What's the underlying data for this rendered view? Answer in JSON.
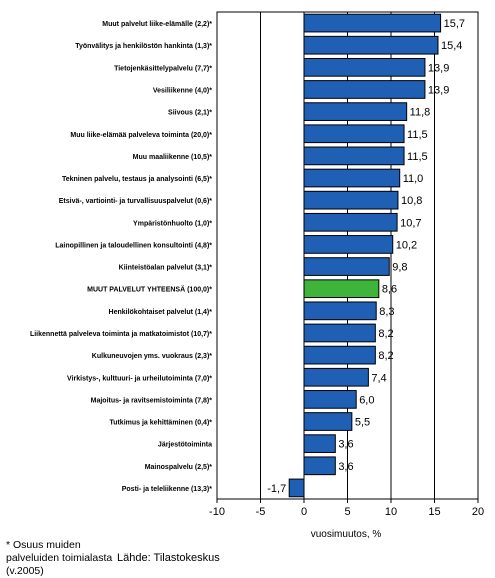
{
  "chart_data": {
    "type": "bar",
    "orientation": "horizontal",
    "categories": [
      "Muut palvelut liike-elämälle (2,2)*",
      "Työnvälitys ja henkilöstön hankinta (1,3)*",
      "Tietojenkäsittelypalvelu (7,7)*",
      "Vesiliikenne (4,0)*",
      "Siivous (2,1)*",
      "Muu liike-elämää palveleva toiminta (20,0)*",
      "Muu maaliikenne (10,5)*",
      "Tekninen palvelu, testaus ja analysointi (6,5)*",
      "Etsivä-, vartiointi- ja turvallisuuspalvelut (0,6)*",
      "Ympäristönhuolto (1,0)*",
      "Lainopillinen ja taloudellinen konsultointi (4,8)*",
      "Kiinteistöalan palvelut (3,1)*",
      "MUUT PALVELUT YHTEENSÄ (100,0)*",
      "Henkilökohtaiset palvelut (1,4)*",
      "Liikennettä palveleva toiminta ja matkatoimistot (10,7)*",
      "Kulkuneuvojen yms. vuokraus (2,3)*",
      "Virkistys-, kulttuuri- ja urheilutoiminta (7,0)*",
      "Majoitus- ja ravitsemistoiminta (7,8)*",
      "Tutkimus ja kehittäminen (0,4)*",
      "Järjestötoiminta",
      "Mainospalvelu (2,5)*",
      "Posti- ja teleliikenne (13,3)*"
    ],
    "values": [
      15.7,
      15.4,
      13.9,
      13.9,
      11.8,
      11.5,
      11.5,
      11.0,
      10.8,
      10.7,
      10.2,
      9.8,
      8.6,
      8.3,
      8.2,
      8.2,
      7.4,
      6.0,
      5.5,
      3.6,
      3.6,
      -1.7
    ],
    "value_labels": [
      "15,7",
      "15,4",
      "13,9",
      "13,9",
      "11,8",
      "11,5",
      "11,5",
      "11,0",
      "10,8",
      "10,7",
      "10,2",
      "9,8",
      "8,6",
      "8,3",
      "8,2",
      "8,2",
      "7,4",
      "6,0",
      "5,5",
      "3,6",
      "3,6",
      "-1,7"
    ],
    "highlight_index": 12,
    "xlabel": "vuosimuutos, %",
    "ylabel": "",
    "xlim": [
      -10,
      20
    ],
    "xticks": [
      -10,
      -5,
      0,
      5,
      10,
      15,
      20
    ],
    "xtick_labels": [
      "-10",
      "-5",
      "0",
      "5",
      "10",
      "15",
      "20"
    ],
    "grid": "vertical"
  },
  "colors": {
    "bar": "#1f5fb4",
    "bar_highlight": "#3fb43a",
    "bar_edge": "#000000",
    "grid": "#000000"
  },
  "footnote": {
    "note": "* Osuus muiden palveluiden toimialasta (v.2005)",
    "source": "Lähde: Tilastokeskus"
  }
}
